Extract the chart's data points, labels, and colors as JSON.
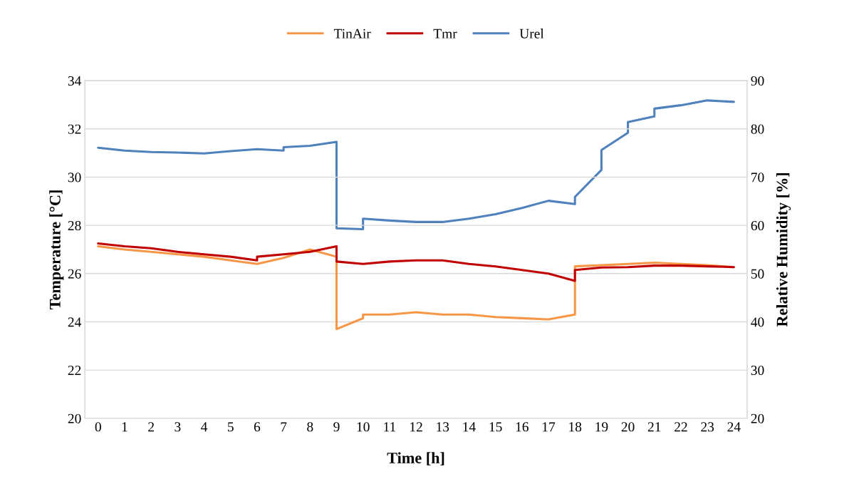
{
  "chart_data": {
    "type": "line",
    "xlabel": "Time [h]",
    "ylabel": "Temperature [°C]",
    "y2label": "Relative Humidity [%]",
    "xlim": [
      -0.5,
      24.5
    ],
    "xticks": [
      0,
      1,
      2,
      3,
      4,
      5,
      6,
      7,
      8,
      9,
      10,
      11,
      12,
      13,
      14,
      15,
      16,
      17,
      18,
      19,
      20,
      21,
      22,
      23,
      24
    ],
    "ylim": [
      20,
      34
    ],
    "yticks": [
      20,
      22,
      24,
      26,
      28,
      30,
      32,
      34
    ],
    "y2lim": [
      20,
      90
    ],
    "y2ticks": [
      20,
      30,
      40,
      50,
      60,
      70,
      80,
      90
    ],
    "grid": "y",
    "legend": "top",
    "marker": "none",
    "line_style": "solid",
    "series": [
      {
        "name": "TinAir",
        "color": "#f79646",
        "x": [
          0,
          1,
          2,
          3,
          4,
          5,
          6,
          7,
          8,
          9,
          9,
          10,
          10,
          11,
          12,
          13,
          14,
          15,
          16,
          17,
          18,
          18,
          19,
          20,
          21,
          22,
          23,
          24
        ],
        "values": [
          27.13,
          27.0,
          26.9,
          26.8,
          26.7,
          26.55,
          26.4,
          26.65,
          27.0,
          26.7,
          23.7,
          24.15,
          24.3,
          24.3,
          24.4,
          24.3,
          24.3,
          24.2,
          24.15,
          24.1,
          24.3,
          26.3,
          26.35,
          26.4,
          26.45,
          26.4,
          26.35,
          26.27
        ]
      },
      {
        "name": "Tmr",
        "color": "#c00000",
        "x": [
          0,
          1,
          2,
          3,
          4,
          5,
          6,
          6,
          7,
          8,
          9,
          9,
          10,
          11,
          12,
          13,
          14,
          15,
          16,
          17,
          18,
          18,
          19,
          20,
          21,
          22,
          23,
          24
        ],
        "values": [
          27.25,
          27.13,
          27.05,
          26.9,
          26.8,
          26.7,
          26.55,
          26.7,
          26.8,
          26.9,
          27.13,
          26.5,
          26.4,
          26.5,
          26.55,
          26.55,
          26.4,
          26.3,
          26.15,
          26.0,
          25.7,
          26.15,
          26.25,
          26.27,
          26.33,
          26.33,
          26.3,
          26.27
        ]
      },
      {
        "name": "Urel",
        "color": "#4f81bd",
        "axis": "y2",
        "x": [
          0,
          1,
          2,
          3,
          4,
          5,
          6,
          7,
          7,
          8,
          9,
          9,
          10,
          10,
          11,
          12,
          13,
          14,
          15,
          16,
          17,
          18,
          18,
          19,
          19,
          20,
          20,
          21,
          21,
          22,
          23,
          24
        ],
        "values": [
          76.1,
          75.5,
          75.2,
          75.1,
          74.9,
          75.4,
          75.8,
          75.5,
          76.2,
          76.5,
          77.3,
          59.4,
          59.2,
          61.4,
          61.0,
          60.7,
          60.7,
          61.4,
          62.3,
          63.6,
          65.1,
          64.4,
          65.9,
          71.5,
          75.6,
          79.2,
          81.4,
          82.6,
          84.2,
          84.9,
          85.9,
          85.6
        ]
      }
    ]
  }
}
